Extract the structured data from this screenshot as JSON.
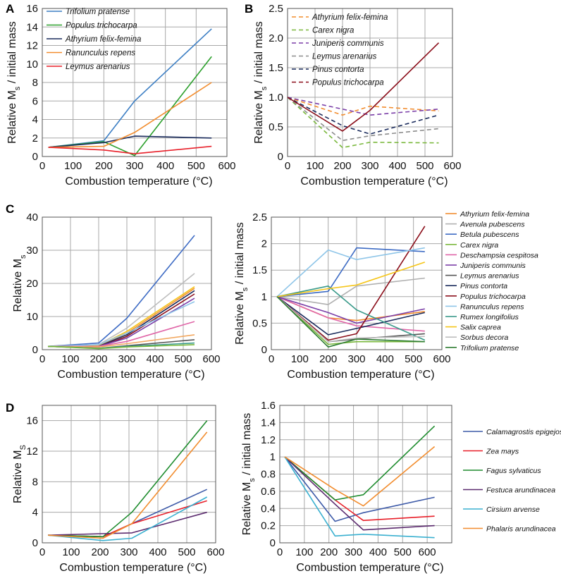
{
  "chart_data": [
    {
      "id": "A",
      "type": "line",
      "panel_label": "A",
      "xlabel": "Combustion temperature (°C)",
      "ylabel_html": "Relative M<tspan baseline-shift='sub' font-size='11'>s</tspan> / initial mass",
      "ylabel_text": "Relative Ms / initial mass",
      "xlim": [
        0,
        600
      ],
      "ylim": [
        0,
        16
      ],
      "xticks": [
        0,
        100,
        200,
        300,
        400,
        500,
        600
      ],
      "yticks": [
        0,
        2,
        4,
        6,
        8,
        10,
        12,
        14,
        16
      ],
      "legend": "top-left",
      "series": [
        {
          "name": "Trifolium pratense",
          "color": "#3d7fc4",
          "dashed": false,
          "x": [
            20,
            200,
            300,
            550
          ],
          "y": [
            1.0,
            1.7,
            6.0,
            13.8
          ]
        },
        {
          "name": "Populus trichocarpa",
          "color": "#2ca02c",
          "dashed": false,
          "x": [
            20,
            200,
            300,
            550
          ],
          "y": [
            1.0,
            1.6,
            0.1,
            10.8
          ]
        },
        {
          "name": "Athyrium felix-femina",
          "color": "#1a2b5c",
          "dashed": false,
          "x": [
            20,
            200,
            300,
            550
          ],
          "y": [
            1.0,
            1.5,
            2.2,
            2.0
          ]
        },
        {
          "name": "Ranunculus repens",
          "color": "#f28d2f",
          "dashed": false,
          "x": [
            20,
            200,
            300,
            550
          ],
          "y": [
            1.0,
            1.1,
            2.6,
            8.0
          ]
        },
        {
          "name": "Leymus arenarius",
          "color": "#e8202a",
          "dashed": false,
          "x": [
            20,
            200,
            300,
            550
          ],
          "y": [
            1.0,
            0.7,
            0.3,
            1.1
          ]
        }
      ]
    },
    {
      "id": "B",
      "type": "line",
      "panel_label": "B",
      "xlabel": "Combustion temperature (°C)",
      "ylabel_html": "Relative M<tspan baseline-shift='sub' font-size='11'>s</tspan> / initial mass",
      "ylabel_text": "Relative Ms / initial mass",
      "xlim": [
        0,
        600
      ],
      "ylim": [
        0,
        2.5
      ],
      "xticks": [
        0,
        100,
        200,
        300,
        400,
        500,
        600
      ],
      "yticks": [
        0,
        0.5,
        1.0,
        1.5,
        2.0,
        2.5
      ],
      "ytick_labels": [
        "0",
        "0.5",
        "1.0",
        "1.5",
        "2.0",
        "2.5"
      ],
      "legend": "top-left",
      "series": [
        {
          "name": "Athyrium felix-femina",
          "color": "#f28d2f",
          "dashed": true,
          "x": [
            0,
            200,
            300,
            550
          ],
          "y": [
            1.0,
            0.7,
            0.85,
            0.77
          ]
        },
        {
          "name": "Carex nigra",
          "color": "#7ab83c",
          "dashed": true,
          "x": [
            0,
            200,
            300,
            550
          ],
          "y": [
            1.0,
            0.15,
            0.24,
            0.23
          ]
        },
        {
          "name": "Juniperis communis",
          "color": "#7b3fa8",
          "dashed": true,
          "x": [
            0,
            200,
            300,
            550
          ],
          "y": [
            1.0,
            0.8,
            0.7,
            0.8
          ]
        },
        {
          "name": "Leymus arenarius",
          "color": "#8c8c8c",
          "dashed": true,
          "x": [
            0,
            200,
            300,
            550
          ],
          "y": [
            1.0,
            0.27,
            0.35,
            0.47
          ]
        },
        {
          "name": "Pinus contorta",
          "color": "#1a2b5c",
          "dashed": true,
          "x": [
            0,
            200,
            300,
            550
          ],
          "y": [
            1.0,
            0.52,
            0.38,
            0.7
          ]
        },
        {
          "name": "Populus trichocarpa",
          "color": "#8b0e1a",
          "dashed": false,
          "legend_dashed": true,
          "x": [
            0,
            200,
            300,
            550
          ],
          "y": [
            1.0,
            0.43,
            0.78,
            1.92
          ]
        }
      ]
    },
    {
      "id": "C1",
      "type": "line",
      "panel_label": "C",
      "xlabel": "Combustion temperature (°C)",
      "ylabel_html": "Relative M<tspan baseline-shift='sub' font-size='11'>s</tspan>",
      "ylabel_text": "Relative Ms",
      "xlim": [
        0,
        600
      ],
      "ylim": [
        0,
        40
      ],
      "xticks": [
        0,
        100,
        200,
        300,
        400,
        500,
        600
      ],
      "yticks": [
        0,
        10,
        20,
        30,
        40
      ],
      "series": [
        {
          "name": "Betula pubescens",
          "color": "#3d6bc4",
          "x": [
            20,
            200,
            300,
            540
          ],
          "y": [
            1.0,
            2.0,
            9.5,
            34.5
          ]
        },
        {
          "name": "Sorbus decora",
          "color": "#bdbdbd",
          "x": [
            20,
            200,
            300,
            540
          ],
          "y": [
            1.0,
            1.5,
            6.5,
            23.0
          ]
        },
        {
          "name": "Salix caprea",
          "color": "#f5c518",
          "x": [
            20,
            200,
            300,
            540
          ],
          "y": [
            1.0,
            1.2,
            5.5,
            19.0
          ]
        },
        {
          "name": "Athyrium felix-femina",
          "color": "#f28d2f",
          "x": [
            20,
            200,
            300,
            540
          ],
          "y": [
            1.0,
            1.0,
            5.0,
            18.5
          ]
        },
        {
          "name": "Pinus contorta",
          "color": "#1a2b5c",
          "x": [
            20,
            200,
            300,
            540
          ],
          "y": [
            1.0,
            1.0,
            4.5,
            17.8
          ]
        },
        {
          "name": "Populus trichocarpa",
          "color": "#8b0e1a",
          "x": [
            20,
            200,
            300,
            540
          ],
          "y": [
            1.0,
            0.8,
            4.0,
            16.8
          ]
        },
        {
          "name": "Juniperis communis",
          "color": "#7b3fa8",
          "x": [
            20,
            200,
            300,
            540
          ],
          "y": [
            1.0,
            1.0,
            3.5,
            15.5
          ]
        },
        {
          "name": "Ranunculus repens",
          "color": "#8ec5e8",
          "x": [
            20,
            200,
            300,
            540
          ],
          "y": [
            1.0,
            1.5,
            5.0,
            14.5
          ]
        },
        {
          "name": "Deschampsia cespitosa",
          "color": "#e066a8",
          "x": [
            20,
            200,
            300,
            540
          ],
          "y": [
            1.0,
            1.0,
            2.5,
            8.5
          ]
        },
        {
          "name": "Avenula pubescens",
          "color": "#f2a860",
          "x": [
            20,
            200,
            300,
            540
          ],
          "y": [
            1.0,
            0.8,
            1.8,
            4.5
          ]
        },
        {
          "name": "Leymus arenarius",
          "color": "#555555",
          "x": [
            20,
            200,
            300,
            540
          ],
          "y": [
            1.0,
            0.4,
            1.2,
            3.0
          ]
        },
        {
          "name": "Rumex longifolius",
          "color": "#3a9a8a",
          "x": [
            20,
            200,
            300,
            540
          ],
          "y": [
            1.0,
            0.4,
            1.0,
            2.0
          ]
        },
        {
          "name": "Carex nigra",
          "color": "#7ab83c",
          "x": [
            20,
            200,
            300,
            540
          ],
          "y": [
            1.0,
            0.3,
            0.8,
            1.5
          ]
        }
      ]
    },
    {
      "id": "C2",
      "type": "line",
      "xlabel": "Combustion temperature (°C)",
      "ylabel_html": "Relative M<tspan baseline-shift='sub' font-size='11'>s</tspan> / initial mass",
      "ylabel_text": "Relative Ms / initial mass",
      "xlim": [
        0,
        600
      ],
      "ylim": [
        0,
        2.5
      ],
      "xticks": [
        0,
        100,
        200,
        300,
        400,
        500,
        600
      ],
      "yticks": [
        0,
        0.5,
        1,
        1.5,
        2,
        2.5
      ],
      "legend": "right",
      "series": [
        {
          "name": "Athyrium felix-femina",
          "color": "#f28d2f",
          "x": [
            20,
            200,
            300,
            540
          ],
          "y": [
            1.0,
            0.6,
            0.55,
            0.72
          ]
        },
        {
          "name": "Avenula pubescens",
          "color": "#b0b0b0",
          "x": [
            20,
            200,
            300,
            540
          ],
          "y": [
            1.0,
            0.85,
            1.2,
            1.35
          ]
        },
        {
          "name": "Betula pubescens",
          "color": "#3d6bc4",
          "x": [
            20,
            200,
            300,
            540
          ],
          "y": [
            1.0,
            1.1,
            1.92,
            1.85
          ]
        },
        {
          "name": "Carex nigra",
          "color": "#7ab83c",
          "x": [
            20,
            200,
            300,
            540
          ],
          "y": [
            1.0,
            0.1,
            0.15,
            0.15
          ]
        },
        {
          "name": "Deschampsia cespitosa",
          "color": "#e066a8",
          "x": [
            20,
            200,
            300,
            540
          ],
          "y": [
            1.0,
            0.6,
            0.45,
            0.35
          ]
        },
        {
          "name": "Juniperis communis",
          "color": "#7b3fa8",
          "x": [
            20,
            200,
            300,
            540
          ],
          "y": [
            1.0,
            0.7,
            0.5,
            0.77
          ]
        },
        {
          "name": "Leymus arenarius",
          "color": "#555555",
          "x": [
            20,
            200,
            300,
            540
          ],
          "y": [
            1.0,
            0.15,
            0.2,
            0.3
          ]
        },
        {
          "name": "Pinus contorta",
          "color": "#1a2b5c",
          "x": [
            20,
            200,
            300,
            540
          ],
          "y": [
            1.0,
            0.28,
            0.4,
            0.7
          ]
        },
        {
          "name": "Populus trichocarpa",
          "color": "#8b0e1a",
          "x": [
            20,
            200,
            300,
            540
          ],
          "y": [
            1.0,
            0.18,
            0.3,
            2.33
          ]
        },
        {
          "name": "Ranunculus repens",
          "color": "#8ec5e8",
          "x": [
            20,
            200,
            300,
            540
          ],
          "y": [
            1.0,
            1.88,
            1.7,
            1.92
          ]
        },
        {
          "name": "Rumex longifolius",
          "color": "#3a9a8a",
          "x": [
            20,
            200,
            300,
            540
          ],
          "y": [
            1.0,
            1.2,
            0.75,
            0.18
          ]
        },
        {
          "name": "Salix caprea",
          "color": "#f5c518",
          "x": [
            20,
            200,
            300,
            540
          ],
          "y": [
            1.0,
            1.15,
            1.22,
            1.65
          ]
        },
        {
          "name": "Sorbus decora",
          "color": "#bdbdbd",
          "x": [
            20,
            200,
            300,
            540
          ],
          "y": [
            1.0,
            0.15,
            0.22,
            0.25
          ]
        },
        {
          "name": "Trifolium pratense",
          "color": "#2e7d32",
          "x": [
            20,
            200,
            300,
            540
          ],
          "y": [
            1.0,
            0.05,
            0.2,
            0.15
          ]
        }
      ]
    },
    {
      "id": "D1",
      "type": "line",
      "panel_label": "D",
      "xlabel": "Combustion temperature (°C)",
      "ylabel_html": "Relative M<tspan baseline-shift='sub' font-size='11'>S</tspan>",
      "ylabel_text": "Relative MS",
      "xlim": [
        0,
        600
      ],
      "ylim": [
        0,
        18
      ],
      "xticks": [
        0,
        100,
        200,
        300,
        400,
        500,
        600
      ],
      "yticks": [
        0,
        4,
        8,
        12,
        16
      ],
      "series": [
        {
          "name": "Calamagrostis epigejos",
          "color": "#3d5aa8",
          "x": [
            20,
            210,
            310,
            570
          ],
          "y": [
            1.0,
            0.8,
            2.5,
            7.0
          ]
        },
        {
          "name": "Zea mays",
          "color": "#e8202a",
          "x": [
            20,
            210,
            310,
            570
          ],
          "y": [
            1.0,
            0.8,
            2.5,
            5.5
          ]
        },
        {
          "name": "Fagus sylvaticus",
          "color": "#1e8c2e",
          "x": [
            20,
            210,
            310,
            570
          ],
          "y": [
            1.0,
            0.8,
            4.0,
            16.0
          ]
        },
        {
          "name": "Festuca arundinacea",
          "color": "#5b2a6e",
          "x": [
            20,
            210,
            310,
            570
          ],
          "y": [
            1.0,
            1.2,
            1.3,
            4.0
          ]
        },
        {
          "name": "Cirsium arvense",
          "color": "#3ab0d0",
          "x": [
            20,
            210,
            310,
            570
          ],
          "y": [
            1.0,
            0.3,
            0.6,
            6.0
          ]
        },
        {
          "name": "Phalaris arundinacea",
          "color": "#f28d2f",
          "x": [
            20,
            210,
            310,
            570
          ],
          "y": [
            1.0,
            0.6,
            2.5,
            14.5
          ]
        }
      ]
    },
    {
      "id": "D2",
      "type": "line",
      "xlabel": "Combustion temperature (°C)",
      "ylabel_html": "Relative M<tspan baseline-shift='sub' font-size='11'>s</tspan> / initial mass",
      "ylabel_text": "Relative Ms / initial mass",
      "xlim": [
        0,
        700
      ],
      "ylim": [
        0,
        1.6
      ],
      "xticks": [
        0,
        100,
        200,
        300,
        400,
        500,
        600
      ],
      "yticks": [
        0,
        0.2,
        0.4,
        0.6,
        0.8,
        1,
        1.2,
        1.4,
        1.6
      ],
      "legend": "right",
      "series": [
        {
          "name": "Calamagrostis epigejos",
          "color": "#3d5aa8",
          "x": [
            20,
            225,
            340,
            630
          ],
          "y": [
            1.0,
            0.25,
            0.35,
            0.53
          ]
        },
        {
          "name": "Zea mays",
          "color": "#e8202a",
          "x": [
            20,
            225,
            340,
            630
          ],
          "y": [
            1.0,
            0.5,
            0.26,
            0.31
          ]
        },
        {
          "name": "Fagus sylvaticus",
          "color": "#1e8c2e",
          "x": [
            20,
            225,
            340,
            630
          ],
          "y": [
            1.0,
            0.5,
            0.56,
            1.36
          ]
        },
        {
          "name": "Festuca arundinacea",
          "color": "#5b2a6e",
          "x": [
            20,
            225,
            340,
            630
          ],
          "y": [
            1.0,
            0.45,
            0.15,
            0.2
          ]
        },
        {
          "name": "Cirsium arvense",
          "color": "#3ab0d0",
          "x": [
            20,
            225,
            340,
            630
          ],
          "y": [
            1.0,
            0.08,
            0.1,
            0.06
          ]
        },
        {
          "name": "Phalaris arundinacea",
          "color": "#f28d2f",
          "x": [
            20,
            225,
            340,
            630
          ],
          "y": [
            1.0,
            0.62,
            0.43,
            1.12
          ]
        }
      ]
    }
  ]
}
